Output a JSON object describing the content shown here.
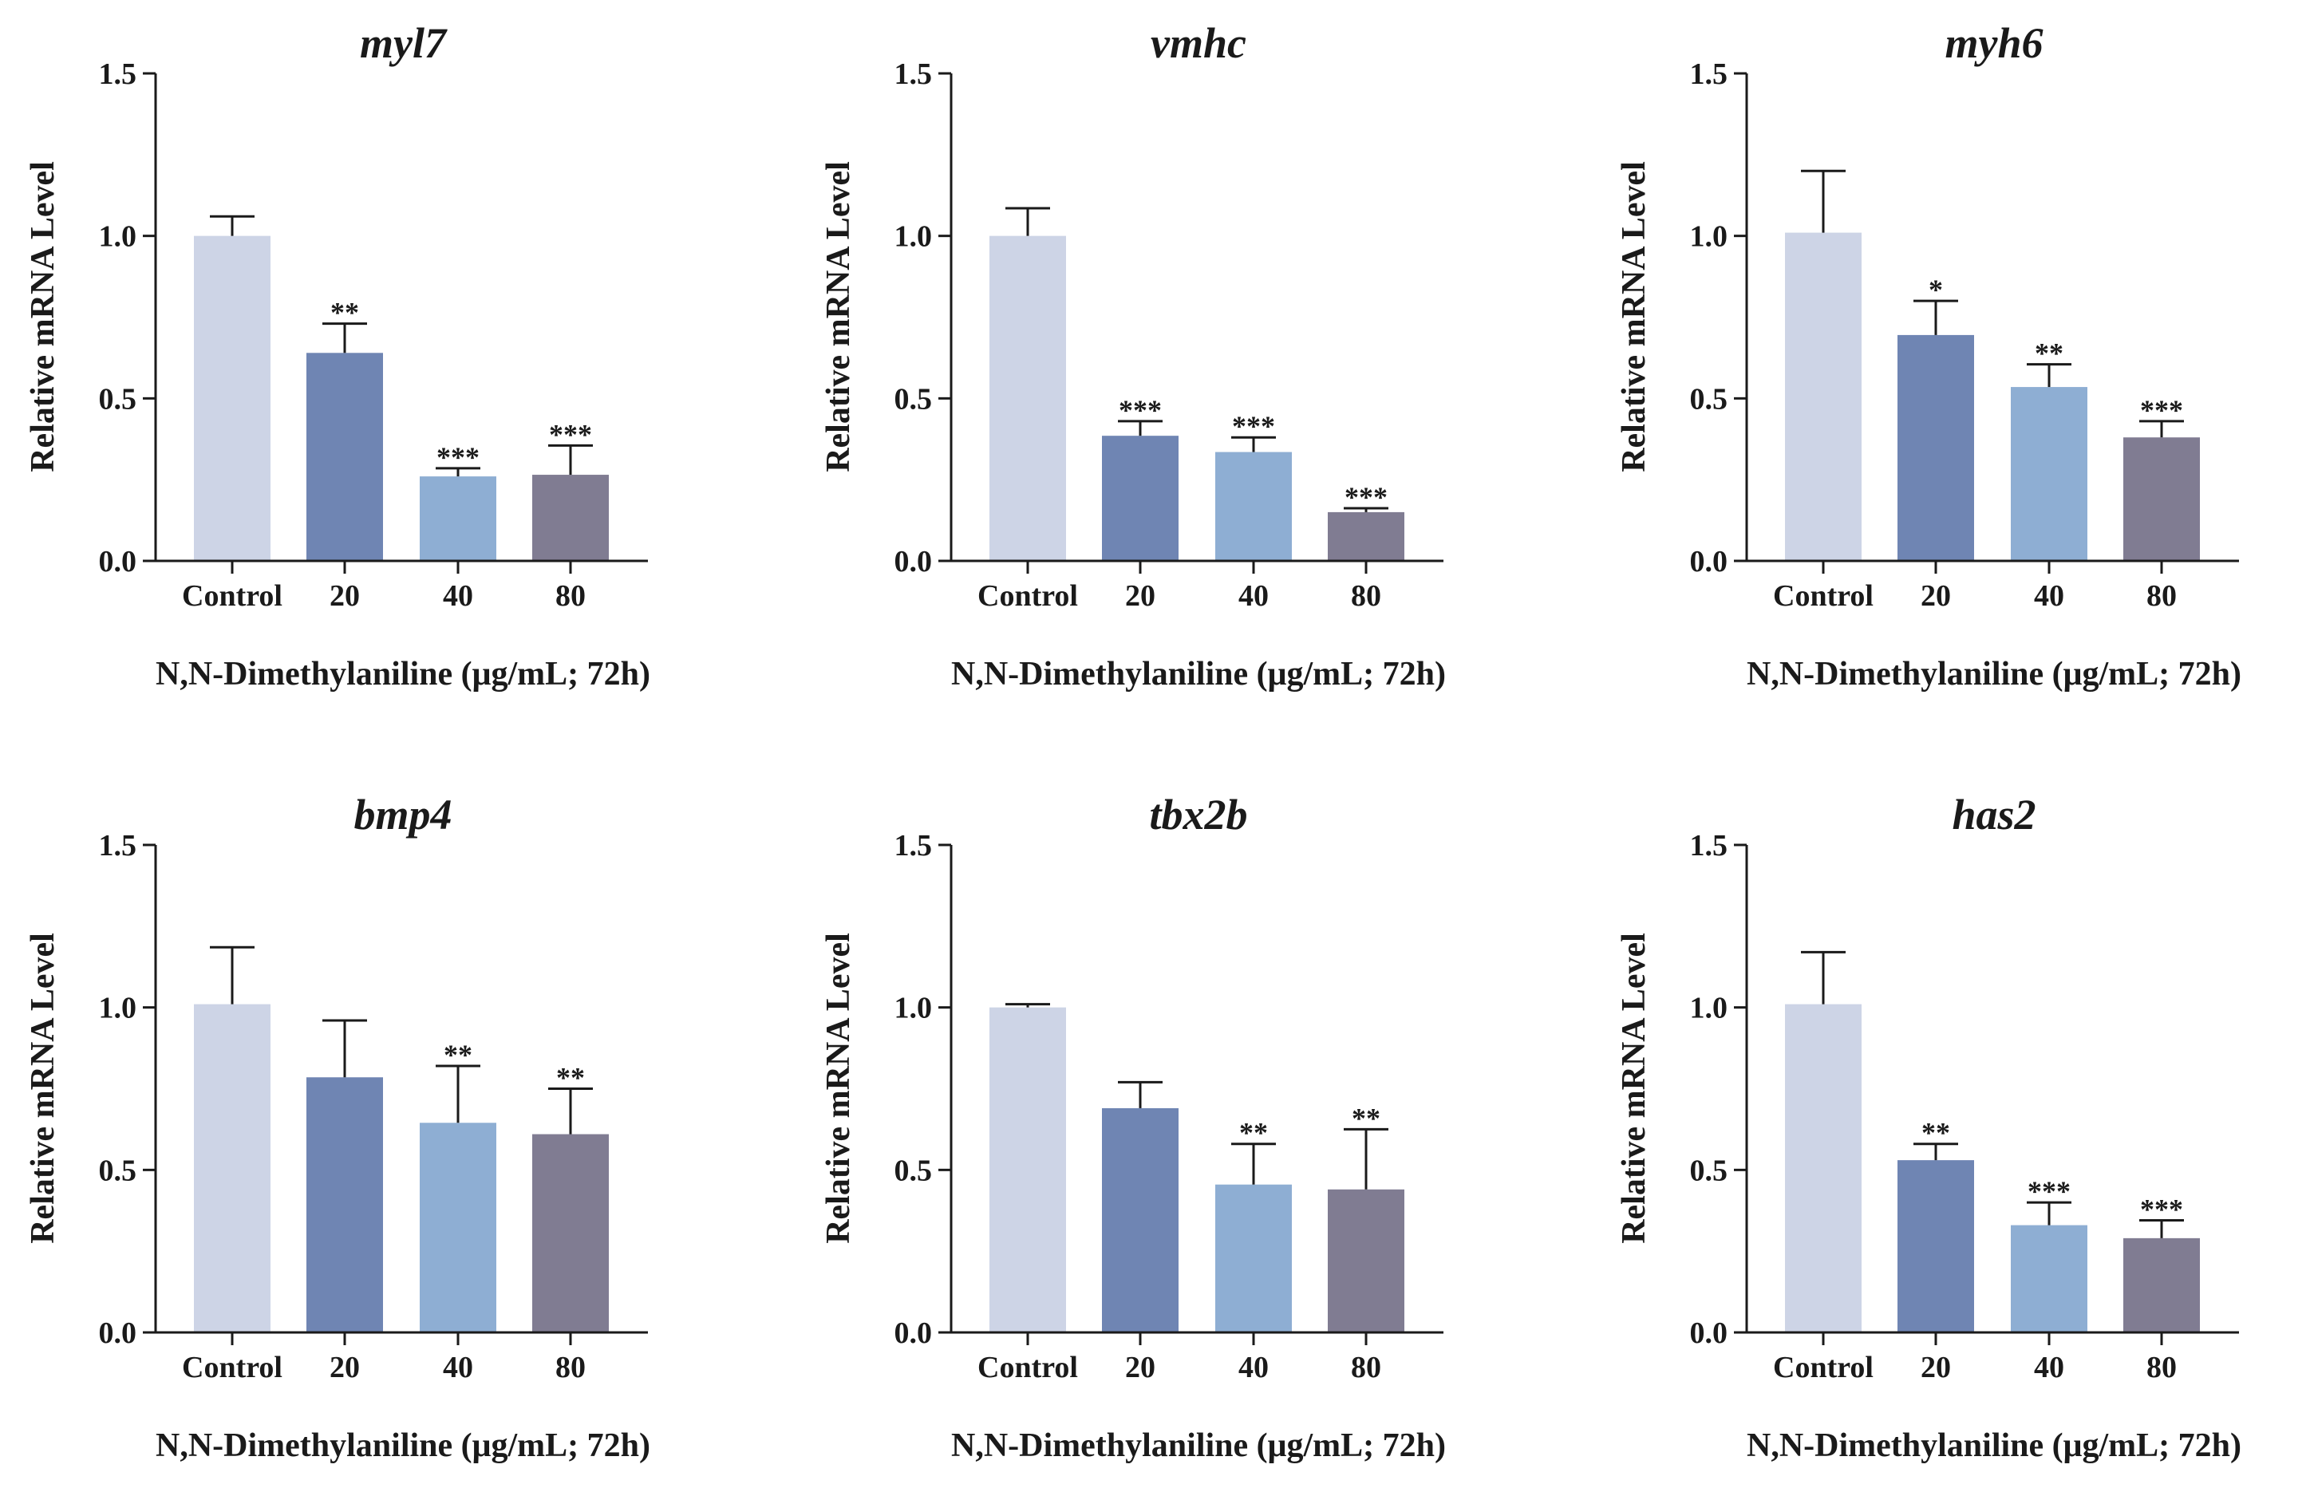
{
  "figure": {
    "description_free": true
  },
  "colors": [
    "#cdd4e6",
    "#6f85b3",
    "#8eaed3",
    "#807c92"
  ],
  "chart_data": [
    {
      "type": "bar",
      "title": "myl7",
      "xlabel": "N,N-Dimethylaniline (μg/mL; 72h)",
      "ylabel": "Relative mRNA Level",
      "ylim": [
        0,
        1.5
      ],
      "yticks": [
        "0.0",
        "0.5",
        "1.0",
        "1.5"
      ],
      "categories": [
        "Control",
        "20",
        "40",
        "80"
      ],
      "values": [
        1.0,
        0.64,
        0.26,
        0.265
      ],
      "errors": [
        0.06,
        0.09,
        0.025,
        0.09
      ],
      "significance": [
        "",
        "**",
        "***",
        "***"
      ]
    },
    {
      "type": "bar",
      "title": "vmhc",
      "xlabel": "N,N-Dimethylaniline (μg/mL; 72h)",
      "ylabel": "Relative mRNA Level",
      "ylim": [
        0,
        1.5
      ],
      "yticks": [
        "0.0",
        "0.5",
        "1.0",
        "1.5"
      ],
      "categories": [
        "Control",
        "20",
        "40",
        "80"
      ],
      "values": [
        1.0,
        0.385,
        0.335,
        0.15
      ],
      "errors": [
        0.085,
        0.045,
        0.045,
        0.012
      ],
      "significance": [
        "",
        "***",
        "***",
        "***"
      ]
    },
    {
      "type": "bar",
      "title": "myh6",
      "xlabel": "N,N-Dimethylaniline (μg/mL; 72h)",
      "ylabel": "Relative mRNA Level",
      "ylim": [
        0,
        1.5
      ],
      "yticks": [
        "0.0",
        "0.5",
        "1.0",
        "1.5"
      ],
      "categories": [
        "Control",
        "20",
        "40",
        "80"
      ],
      "values": [
        1.01,
        0.695,
        0.535,
        0.38
      ],
      "errors": [
        0.19,
        0.105,
        0.07,
        0.05
      ],
      "significance": [
        "",
        "*",
        "**",
        "***"
      ]
    },
    {
      "type": "bar",
      "title": "bmp4",
      "xlabel": "N,N-Dimethylaniline (μg/mL; 72h)",
      "ylabel": "Relative mRNA Level",
      "ylim": [
        0,
        1.5
      ],
      "yticks": [
        "0.0",
        "0.5",
        "1.0",
        "1.5"
      ],
      "categories": [
        "Control",
        "20",
        "40",
        "80"
      ],
      "values": [
        1.01,
        0.785,
        0.645,
        0.61
      ],
      "errors": [
        0.175,
        0.175,
        0.175,
        0.14
      ],
      "significance": [
        "",
        "",
        "**",
        "**"
      ]
    },
    {
      "type": "bar",
      "title": "tbx2b",
      "xlabel": "N,N-Dimethylaniline (μg/mL; 72h)",
      "ylabel": "Relative mRNA Level",
      "ylim": [
        0,
        1.5
      ],
      "yticks": [
        "0.0",
        "0.5",
        "1.0",
        "1.5"
      ],
      "categories": [
        "Control",
        "20",
        "40",
        "80"
      ],
      "values": [
        1.0,
        0.69,
        0.455,
        0.44
      ],
      "errors": [
        0.01,
        0.08,
        0.125,
        0.185
      ],
      "significance": [
        "",
        "",
        "**",
        "**"
      ]
    },
    {
      "type": "bar",
      "title": "has2",
      "xlabel": "N,N-Dimethylaniline (μg/mL; 72h)",
      "ylabel": "Relative mRNA Level",
      "ylim": [
        0,
        1.5
      ],
      "yticks": [
        "0.0",
        "0.5",
        "1.0",
        "1.5"
      ],
      "categories": [
        "Control",
        "20",
        "40",
        "80"
      ],
      "values": [
        1.01,
        0.53,
        0.33,
        0.29
      ],
      "errors": [
        0.16,
        0.05,
        0.07,
        0.055
      ],
      "significance": [
        "",
        "**",
        "***",
        "***"
      ]
    }
  ]
}
